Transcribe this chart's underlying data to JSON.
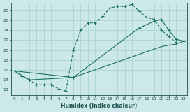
{
  "xlabel": "Humidex (Indice chaleur)",
  "bg_color": "#cce8e8",
  "grid_color": "#aad4d4",
  "line_color": "#1a7060",
  "xlim": [
    -0.5,
    23.5
  ],
  "ylim": [
    11.0,
    29.5
  ],
  "yticks": [
    12,
    14,
    16,
    18,
    20,
    22,
    24,
    26,
    28
  ],
  "xticks": [
    0,
    1,
    2,
    3,
    4,
    5,
    6,
    7,
    8,
    9,
    10,
    11,
    12,
    13,
    14,
    15,
    16,
    17,
    18,
    19,
    20,
    21,
    22,
    23
  ],
  "line1_x": [
    0,
    1,
    2,
    3,
    4,
    5,
    6,
    7,
    8,
    9,
    10,
    11,
    12,
    13,
    14,
    15,
    16,
    17,
    18,
    19,
    20,
    21,
    22
  ],
  "line1_y": [
    15.8,
    14.8,
    14.0,
    13.0,
    13.0,
    13.0,
    12.2,
    11.8,
    20.0,
    24.0,
    25.5,
    25.5,
    26.8,
    28.5,
    28.8,
    28.8,
    29.2,
    27.8,
    26.6,
    26.2,
    24.0,
    22.8,
    21.5
  ],
  "line2_x": [
    0,
    2,
    8,
    17,
    19,
    20,
    21,
    22,
    23
  ],
  "line2_y": [
    15.8,
    14.0,
    14.5,
    24.5,
    25.8,
    26.2,
    24.0,
    22.2,
    21.8
  ],
  "line3_x": [
    0,
    8,
    19,
    20,
    21,
    22,
    23
  ],
  "line3_y": [
    15.8,
    14.5,
    20.2,
    20.7,
    21.0,
    21.2,
    21.8
  ]
}
